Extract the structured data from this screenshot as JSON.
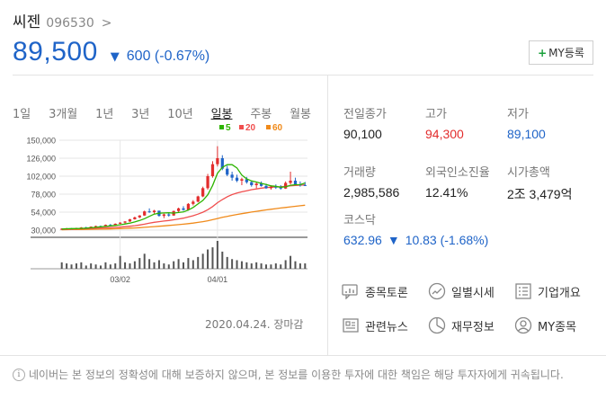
{
  "stock": {
    "name": "씨젠",
    "code": "096530",
    "price": "89,500",
    "change": "600 (-0.67%)"
  },
  "my_button": {
    "label": "MY등록",
    "plus": "+"
  },
  "periods": [
    "1일",
    "3개월",
    "1년",
    "3년",
    "10년",
    "일봉",
    "주봉",
    "월봉"
  ],
  "active_period": "일봉",
  "chart_date": "2020.04.24. 장마감",
  "stats": {
    "prev_close": {
      "label": "전일종가",
      "value": "90,100"
    },
    "high": {
      "label": "고가",
      "value": "94,300"
    },
    "low": {
      "label": "저가",
      "value": "89,100"
    },
    "volume": {
      "label": "거래량",
      "value": "2,985,586"
    },
    "foreign_ratio": {
      "label": "외국인소진율",
      "value": "12.41%"
    },
    "market_cap": {
      "label": "시가총액",
      "value": "2조 3,479억"
    }
  },
  "kosdaq": {
    "label": "코스닥",
    "value": "632.96",
    "change": "10.83 (-1.68%)"
  },
  "links": [
    {
      "label": "종목토론",
      "icon": "discussion-icon"
    },
    {
      "label": "일별시세",
      "icon": "trend-icon"
    },
    {
      "label": "기업개요",
      "icon": "document-icon"
    },
    {
      "label": "관련뉴스",
      "icon": "news-icon"
    },
    {
      "label": "재무정보",
      "icon": "pie-icon"
    },
    {
      "label": "MY종목",
      "icon": "user-icon"
    }
  ],
  "notice": "네이버는 본 정보의 정확성에 대해 보증하지 않으며, 본 정보를 이용한 투자에 대한 책임은 해당 투자자에게 귀속됩니다.",
  "colors": {
    "up": "#e22d2d",
    "down": "#1f64c8",
    "ma5": "#2db400",
    "ma20": "#f04e4e",
    "ma60": "#f08a1a"
  },
  "chart_data": {
    "type": "candlestick",
    "legend": [
      {
        "name": "5",
        "color": "#2db400"
      },
      {
        "name": "20",
        "color": "#f04e4e"
      },
      {
        "name": "60",
        "color": "#f08a1a"
      }
    ],
    "y_ticks": [
      150000,
      126000,
      102000,
      78000,
      54000,
      30000
    ],
    "y_tick_labels": [
      "150,000",
      "126,000",
      "102,000",
      "78,000",
      "54,000",
      "30,000"
    ],
    "ylim": [
      30000,
      150000
    ],
    "x_ticks": [
      {
        "index": 12,
        "label": "03/02"
      },
      {
        "index": 32,
        "label": "04/01"
      }
    ],
    "candles": [
      [
        31000,
        32500,
        30200,
        31800
      ],
      [
        31800,
        33000,
        31000,
        32200
      ],
      [
        32200,
        32800,
        31200,
        31500
      ],
      [
        31500,
        33200,
        31000,
        32800
      ],
      [
        32800,
        34000,
        32000,
        33500
      ],
      [
        33500,
        34500,
        32800,
        33200
      ],
      [
        33200,
        35000,
        32900,
        34600
      ],
      [
        34600,
        36000,
        34000,
        35400
      ],
      [
        35400,
        36200,
        34200,
        34800
      ],
      [
        34800,
        37500,
        34500,
        37000
      ],
      [
        37000,
        38200,
        36000,
        36500
      ],
      [
        36500,
        39000,
        36000,
        38500
      ],
      [
        38500,
        40500,
        38000,
        40000
      ],
      [
        40000,
        42000,
        39000,
        41500
      ],
      [
        41500,
        45000,
        41000,
        44500
      ],
      [
        44500,
        48000,
        44000,
        47000
      ],
      [
        47000,
        50000,
        46000,
        49500
      ],
      [
        49500,
        56000,
        49000,
        55000
      ],
      [
        55000,
        59000,
        53000,
        54000
      ],
      [
        54000,
        57000,
        52000,
        56000
      ],
      [
        56000,
        55000,
        48000,
        49000
      ],
      [
        49000,
        52000,
        46000,
        51000
      ],
      [
        51000,
        53000,
        48000,
        49500
      ],
      [
        49500,
        56000,
        49000,
        55500
      ],
      [
        55500,
        60000,
        54000,
        59000
      ],
      [
        59000,
        62000,
        56000,
        57000
      ],
      [
        57000,
        66000,
        56000,
        65000
      ],
      [
        65000,
        70000,
        63000,
        68000
      ],
      [
        68000,
        76000,
        67000,
        75000
      ],
      [
        75000,
        88000,
        74000,
        86000
      ],
      [
        86000,
        105000,
        84000,
        102000
      ],
      [
        102000,
        122000,
        100000,
        118000
      ],
      [
        118000,
        142000,
        115000,
        126000
      ],
      [
        126000,
        130000,
        110000,
        112000
      ],
      [
        112000,
        116000,
        102000,
        104000
      ],
      [
        104000,
        108000,
        96000,
        100000
      ],
      [
        100000,
        104000,
        94000,
        96000
      ],
      [
        96000,
        100000,
        90000,
        98000
      ],
      [
        98000,
        101000,
        92000,
        94000
      ],
      [
        94000,
        96000,
        88000,
        90000
      ],
      [
        90000,
        94000,
        86000,
        92000
      ],
      [
        92000,
        95000,
        88000,
        89000
      ],
      [
        89000,
        92000,
        85000,
        86000
      ],
      [
        86000,
        90000,
        84000,
        88000
      ],
      [
        88000,
        91000,
        85000,
        87000
      ],
      [
        87000,
        90000,
        84000,
        85500
      ],
      [
        85500,
        95000,
        85000,
        93000
      ],
      [
        93000,
        108000,
        91000,
        96000
      ],
      [
        96000,
        100000,
        90000,
        91000
      ],
      [
        91000,
        95000,
        88000,
        90100
      ],
      [
        90100,
        94300,
        89100,
        89500
      ]
    ],
    "ma5": [
      31500,
      31800,
      32000,
      32100,
      32300,
      32600,
      33100,
      33700,
      34400,
      34900,
      35600,
      36300,
      37100,
      38200,
      39400,
      40900,
      42800,
      45200,
      48400,
      51400,
      52600,
      52900,
      53200,
      52700,
      53500,
      54200,
      56800,
      60300,
      64900,
      69600,
      77200,
      89600,
      106000,
      113800,
      117400,
      117400,
      113000,
      103600,
      98400,
      95600,
      94200,
      92400,
      90800,
      89000,
      88400,
      87300,
      87700,
      89900,
      90600,
      90700,
      92900
    ],
    "ma20": [
      31000,
      31200,
      31400,
      31600,
      31800,
      32000,
      32200,
      32500,
      32800,
      33100,
      33400,
      33700,
      34100,
      34600,
      35200,
      35900,
      36800,
      37900,
      39300,
      40500,
      41300,
      42100,
      42900,
      43800,
      44900,
      46000,
      47500,
      49200,
      51400,
      53900,
      57300,
      61500,
      66600,
      70800,
      74500,
      77400,
      79600,
      81100,
      82600,
      84000,
      85000,
      86000,
      86800,
      87200,
      87600,
      87900,
      88500,
      89200,
      89600,
      90000,
      90400
    ],
    "ma60": [
      30500,
      30600,
      30700,
      30800,
      30900,
      31000,
      31100,
      31200,
      31300,
      31400,
      31600,
      31800,
      32000,
      32300,
      32600,
      32900,
      33300,
      33700,
      34200,
      34700,
      35200,
      35700,
      36200,
      36700,
      37300,
      37900,
      38600,
      39400,
      40300,
      41300,
      42500,
      43900,
      45500,
      47000,
      48400,
      49700,
      50900,
      52000,
      53100,
      54100,
      55100,
      56100,
      57000,
      57900,
      58700,
      59500,
      60300,
      61100,
      61800,
      62500,
      63200
    ],
    "volume": [
      6,
      5,
      4,
      5,
      6,
      3,
      5,
      4,
      3,
      6,
      4,
      5,
      12,
      6,
      5,
      7,
      10,
      14,
      9,
      6,
      8,
      5,
      4,
      7,
      9,
      6,
      10,
      8,
      11,
      14,
      18,
      20,
      26,
      16,
      11,
      9,
      8,
      7,
      6,
      5,
      6,
      5,
      4,
      4,
      5,
      4,
      8,
      12,
      7,
      5,
      5
    ]
  }
}
